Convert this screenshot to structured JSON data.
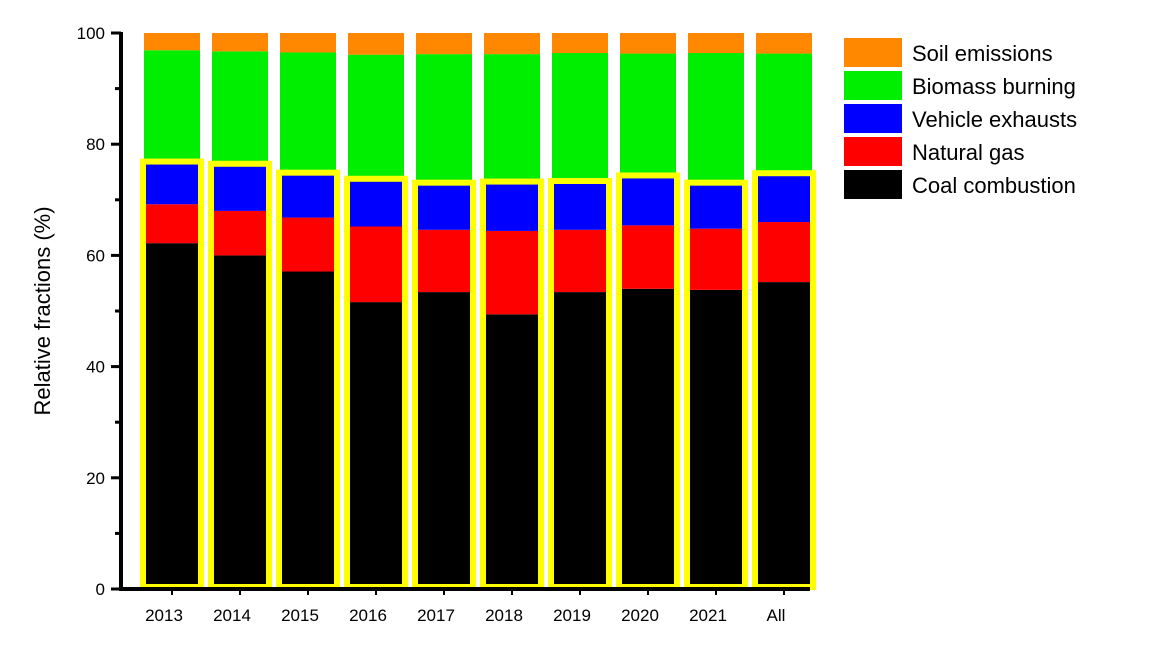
{
  "chart_data": {
    "type": "bar",
    "stacked": true,
    "title": "",
    "xlabel": "",
    "ylabel": "Relative fractions (%)",
    "ylim": [
      0,
      100
    ],
    "yticks": [
      "0",
      "20",
      "40",
      "60",
      "80",
      "100"
    ],
    "categories": [
      "2013",
      "2014",
      "2015",
      "2016",
      "2017",
      "2018",
      "2019",
      "2020",
      "2021",
      "All"
    ],
    "series": [
      {
        "name": "Coal combustion",
        "color": "#000000",
        "values": [
          62.2,
          60.0,
          57.1,
          51.6,
          53.4,
          49.4,
          53.4,
          54.0,
          53.8,
          55.2
        ]
      },
      {
        "name": "Natural gas",
        "color": "#ff0000",
        "values": [
          7.0,
          8.0,
          9.7,
          13.6,
          11.2,
          15.0,
          11.2,
          11.4,
          11.0,
          10.8
        ]
      },
      {
        "name": "Vehicle exhausts",
        "color": "#0000ff",
        "values": [
          7.5,
          8.3,
          7.9,
          8.4,
          8.3,
          8.7,
          8.6,
          8.8,
          8.1,
          8.6
        ]
      },
      {
        "name": "Biomass burning",
        "color": "#00ee00",
        "values": [
          20.2,
          20.4,
          21.8,
          22.5,
          23.3,
          23.1,
          23.2,
          22.1,
          23.5,
          21.7
        ]
      },
      {
        "name": "Soil emissions",
        "color": "#ff8800",
        "values": [
          3.1,
          3.3,
          3.5,
          3.9,
          3.8,
          3.8,
          3.6,
          3.7,
          3.6,
          3.7
        ]
      }
    ],
    "highlight": {
      "color": "#ffff00",
      "description_series": [
        "Coal combustion",
        "Natural gas",
        "Vehicle exhausts"
      ]
    },
    "legend_position": "top-right"
  }
}
